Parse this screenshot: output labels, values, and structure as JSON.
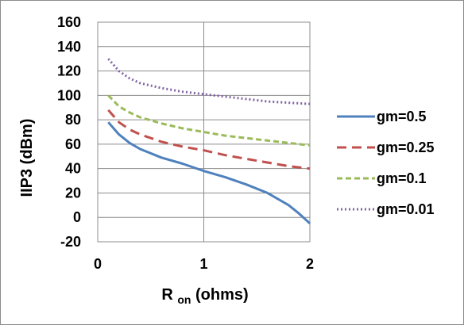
{
  "chart_data": {
    "type": "line",
    "title": "",
    "xlabel": {
      "main": "R",
      "subscript": "on",
      "rest": " (ohms)"
    },
    "ylabel": "IIP3 (dBm)",
    "xlim": [
      0,
      2
    ],
    "ylim": [
      -20,
      160
    ],
    "x_ticks": [
      0,
      1,
      2
    ],
    "y_ticks": [
      -20,
      0,
      20,
      40,
      60,
      80,
      100,
      120,
      140,
      160
    ],
    "grid": "major-both",
    "legend_position": "right",
    "series": [
      {
        "name": "gm=0.5",
        "color": "#4f81bd",
        "style": "solid",
        "x": [
          0.1,
          0.2,
          0.3,
          0.4,
          0.6,
          0.8,
          1.0,
          1.2,
          1.4,
          1.6,
          1.8,
          1.9,
          2.0
        ],
        "y": [
          78,
          68,
          61,
          56,
          49,
          44,
          38,
          33,
          27,
          20,
          10,
          3,
          -5
        ]
      },
      {
        "name": "gm=0.25",
        "color": "#c0504d",
        "style": "dashed",
        "x": [
          0.1,
          0.2,
          0.3,
          0.4,
          0.6,
          0.8,
          1.0,
          1.2,
          1.4,
          1.6,
          1.8,
          2.0
        ],
        "y": [
          88,
          78,
          72,
          68,
          62,
          58,
          55,
          51,
          48,
          45,
          42,
          40
        ]
      },
      {
        "name": "gm=0.1",
        "color": "#9bbb59",
        "style": "short-dashed",
        "x": [
          0.1,
          0.2,
          0.3,
          0.4,
          0.6,
          0.8,
          1.0,
          1.2,
          1.4,
          1.6,
          1.8,
          2.0
        ],
        "y": [
          100,
          91,
          86,
          82,
          77,
          73,
          70,
          67,
          65,
          63,
          61,
          59
        ]
      },
      {
        "name": "gm=0.01",
        "color": "#8064a2",
        "style": "dotted",
        "x": [
          0.1,
          0.2,
          0.3,
          0.4,
          0.6,
          0.8,
          1.0,
          1.2,
          1.4,
          1.6,
          1.8,
          2.0
        ],
        "y": [
          130,
          120,
          114,
          110,
          106,
          103,
          101,
          99,
          97,
          95,
          94,
          93
        ]
      }
    ]
  }
}
